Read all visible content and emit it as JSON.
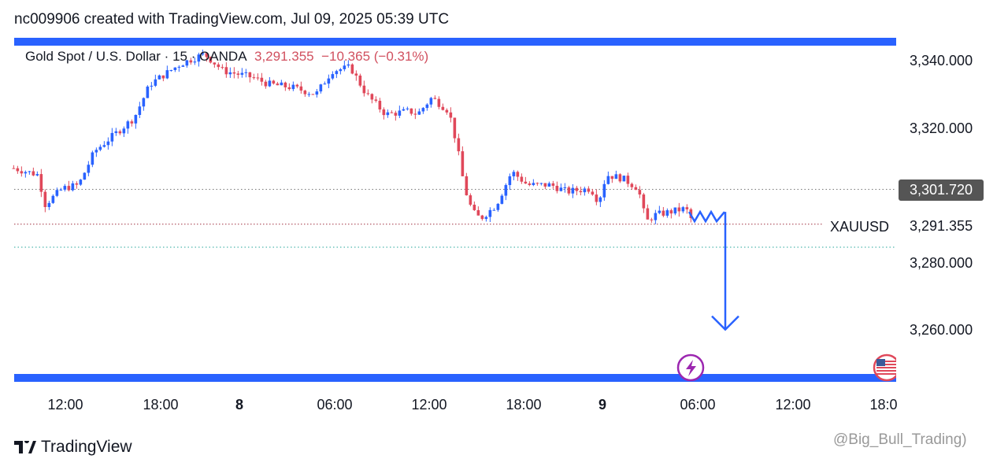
{
  "header": {
    "caption": "nc009906 created with TradingView.com, Jul 09, 2025 05:39 UTC"
  },
  "legend": {
    "symbol": "Gold Spot / U.S. Dollar · 15 · OANDA",
    "price": "3,291.355",
    "change": "−10.365 (−0.31%)"
  },
  "price_scale": {
    "ticks": [
      "3,340.000",
      "3,320.000",
      "3,280.000",
      "3,260.000"
    ],
    "current_label": "3,301.720",
    "last_price_label": "3,291.355",
    "symbol_label": "XAUUSD"
  },
  "time_axis": {
    "ticks": [
      "12:00",
      "18:00",
      "8",
      "06:00",
      "12:00",
      "18:00",
      "9",
      "06:00",
      "12:00",
      "18:0"
    ]
  },
  "colors": {
    "up": "#2962ff",
    "down": "#e0485a",
    "drawing": "#2962ff",
    "band": "#2962ff"
  },
  "icons": [
    "lightning-event-icon",
    "us-flag-event-icon",
    "tradingview-logo-icon"
  ],
  "branding": {
    "logo_text": "TradingView",
    "watermark": "@Big_Bull_Trading)"
  },
  "chart_data": {
    "type": "candlestick",
    "interval": "15",
    "ylim": [
      3250,
      3348
    ],
    "levels": [
      3301.72,
      3291.355,
      3284.5
    ],
    "close_path": [
      [
        "07 08:45",
        3308
      ],
      [
        "07 10:20",
        3306
      ],
      [
        "07 10:40",
        3297
      ],
      [
        "07 11:50",
        3302
      ],
      [
        "07 12:50",
        3303
      ],
      [
        "07 13:50",
        3313
      ],
      [
        "07 14:50",
        3317
      ],
      [
        "07 16:20",
        3323
      ],
      [
        "07 17:20",
        3333
      ],
      [
        "07 18:20",
        3336
      ],
      [
        "07 19:30",
        3339
      ],
      [
        "07 21:20",
        3342
      ],
      [
        "07 22:45",
        3337
      ],
      [
        "08 00:50",
        3335
      ],
      [
        "08 01:50",
        3333
      ],
      [
        "08 03:20",
        3332
      ],
      [
        "08 04:50",
        3330
      ],
      [
        "08 05:50",
        3337
      ],
      [
        "08 07:00",
        3338
      ],
      [
        "08 08:00",
        3330
      ],
      [
        "08 09:15",
        3324
      ],
      [
        "08 10:45",
        3325
      ],
      [
        "08 11:15",
        3324
      ],
      [
        "08 12:10",
        3329
      ],
      [
        "08 13:15",
        3325
      ],
      [
        "08 13:45",
        3315
      ],
      [
        "08 14:15",
        3302
      ],
      [
        "08 14:45",
        3295
      ],
      [
        "08 15:15",
        3293
      ],
      [
        "08 16:15",
        3297
      ],
      [
        "08 17:15",
        3307
      ],
      [
        "08 18:18",
        3303
      ],
      [
        "08 20:06",
        3303
      ],
      [
        "08 21:18",
        3301
      ],
      [
        "08 23:06",
        3302
      ],
      [
        "08 23:42",
        3298
      ],
      [
        "09 00:15",
        3306
      ],
      [
        "09 01:15",
        3305
      ],
      [
        "09 02:15",
        3302
      ],
      [
        "09 02:45",
        3292
      ],
      [
        "09 03:15",
        3294
      ],
      [
        "09 04:15",
        3295
      ],
      [
        "09 05:15",
        3296
      ],
      [
        "09 05:45",
        3291.355
      ]
    ],
    "projection": {
      "from": 3295,
      "to": 3260
    }
  }
}
